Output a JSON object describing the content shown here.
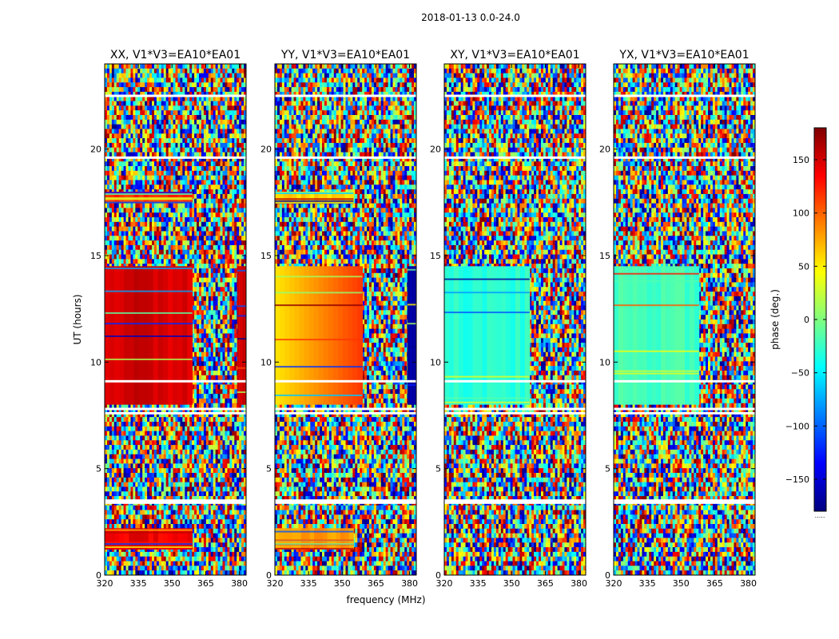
{
  "figure_title": "2018-01-13 0.0-24.0",
  "colorbar": {
    "label": "phase (deg.)",
    "range": [
      -180,
      180
    ],
    "ticks": [
      -150,
      -100,
      -50,
      0,
      50,
      100,
      150
    ],
    "tick_labels": [
      "−150",
      "−100",
      "−50",
      "0",
      "50",
      "100",
      "150"
    ],
    "colormap": [
      "#00007f",
      "#0000ff",
      "#007fff",
      "#00ffff",
      "#7fff7f",
      "#ffff00",
      "#ff7f00",
      "#ff0000",
      "#7f0000"
    ],
    "footer_text": "....."
  },
  "chart_data": {
    "type": "heatmap",
    "xlabel": "frequency (MHz)",
    "ylabel": "UT (hours)",
    "xlim": [
      320,
      383
    ],
    "ylim": [
      0,
      24
    ],
    "xticks": [
      320,
      335,
      350,
      365,
      380
    ],
    "yticks": [
      0,
      5,
      10,
      15,
      20
    ],
    "value_label": "phase (deg.)",
    "value_range": [
      -180,
      180
    ],
    "gap_rows_ut": [
      7.8,
      7.6,
      3.5,
      3.4,
      19.6,
      22.5,
      9.1
    ],
    "panels": [
      {
        "title": "XX, V1*V3=EA10*EA01",
        "coherent_blocks": [
          {
            "ut_start": 8.0,
            "ut_end": 14.5,
            "freq_start": 320,
            "freq_end": 359,
            "phase_deg": 150
          },
          {
            "ut_start": 8.0,
            "ut_end": 14.5,
            "freq_start": 379,
            "freq_end": 383,
            "phase_deg": 150
          },
          {
            "ut_start": 17.5,
            "ut_end": 18.0,
            "freq_start": 320,
            "freq_end": 359,
            "phase_deg": 120
          },
          {
            "ut_start": 1.2,
            "ut_end": 2.2,
            "freq_start": 320,
            "freq_end": 359,
            "phase_deg": 140
          }
        ]
      },
      {
        "title": "YY, V1*V3=EA10*EA01",
        "coherent_blocks": [
          {
            "ut_start": 8.0,
            "ut_end": 14.5,
            "freq_start": 320,
            "freq_end": 359,
            "phase_deg_start": 55,
            "phase_deg_end": 115
          },
          {
            "ut_start": 8.0,
            "ut_end": 14.5,
            "freq_start": 379,
            "freq_end": 383,
            "phase_deg": -170
          },
          {
            "ut_start": 17.5,
            "ut_end": 18.0,
            "freq_start": 320,
            "freq_end": 355,
            "phase_deg": 60
          },
          {
            "ut_start": 1.2,
            "ut_end": 2.2,
            "freq_start": 320,
            "freq_end": 355,
            "phase_deg": 80
          }
        ]
      },
      {
        "title": "XY, V1*V3=EA10*EA01",
        "coherent_blocks": [
          {
            "ut_start": 8.0,
            "ut_end": 14.5,
            "freq_start": 320,
            "freq_end": 358,
            "phase_deg": -30
          }
        ]
      },
      {
        "title": "YX, V1*V3=EA10*EA01",
        "coherent_blocks": [
          {
            "ut_start": 8.0,
            "ut_end": 14.5,
            "freq_start": 320,
            "freq_end": 358,
            "phase_deg": -20
          }
        ]
      }
    ]
  }
}
